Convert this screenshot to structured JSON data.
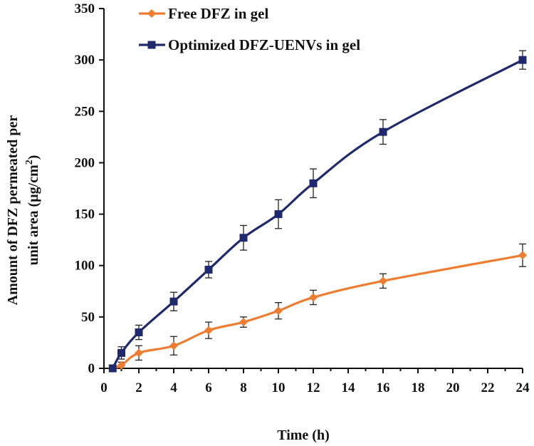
{
  "chart_data": {
    "type": "line",
    "title": "",
    "xlabel": "Time (h)",
    "ylabel_line1": "Amount of DFZ permeated per",
    "ylabel_line2_prefix": "unit area (µg/cm",
    "ylabel_sup": "2",
    "ylabel_suffix": ")",
    "xlim": [
      0,
      24
    ],
    "ylim": [
      0,
      350
    ],
    "xticks": [
      0,
      2,
      4,
      6,
      8,
      10,
      12,
      14,
      16,
      18,
      20,
      22,
      24
    ],
    "yticks": [
      0,
      50,
      100,
      150,
      200,
      250,
      300,
      350
    ],
    "legend_position": "top-left",
    "series": [
      {
        "name": "Free DFZ in gel",
        "color": "#ED7D31",
        "marker": "diamond",
        "x": [
          0.5,
          1,
          2,
          4,
          6,
          8,
          10,
          12,
          16,
          24
        ],
        "y": [
          0,
          3,
          15,
          22,
          37,
          45,
          56,
          69,
          85,
          110
        ],
        "error": [
          0,
          3,
          7,
          9,
          8,
          5,
          8,
          7,
          7,
          11
        ]
      },
      {
        "name": "Optimized DFZ-UENVs in gel",
        "color": "#1F2A6E",
        "marker": "square",
        "x": [
          0.5,
          1,
          2,
          4,
          6,
          8,
          10,
          12,
          16,
          24
        ],
        "y": [
          0,
          15,
          35,
          65,
          96,
          127,
          150,
          180,
          230,
          300
        ],
        "error": [
          0,
          6,
          7,
          9,
          8,
          12,
          14,
          14,
          12,
          9
        ]
      }
    ]
  }
}
